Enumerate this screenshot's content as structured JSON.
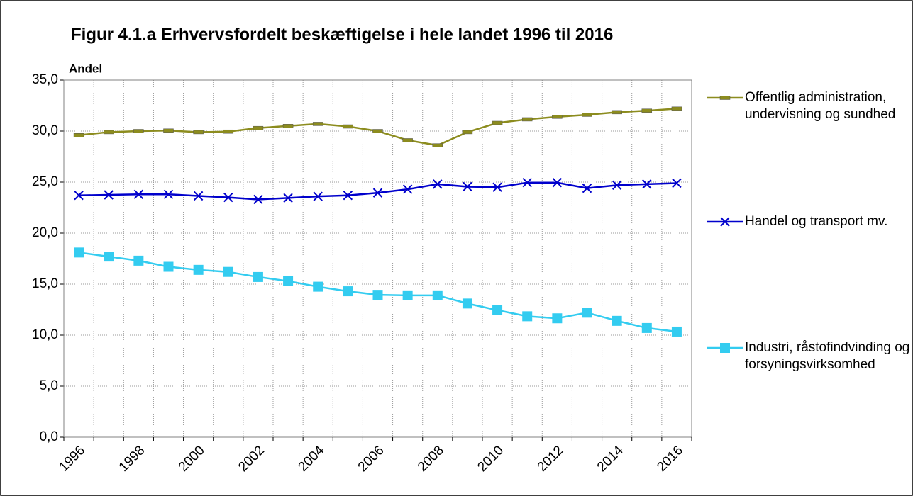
{
  "chart_data": {
    "type": "line",
    "title": "Figur 4.1.a Erhvervsfordelt beskæftigelse i hele landet 1996 til 2016",
    "y_label": "Andel",
    "categories": [
      "1996",
      null,
      "1998",
      null,
      "2000",
      null,
      "2002",
      null,
      "2004",
      null,
      "2006",
      null,
      "2008",
      null,
      "2010",
      null,
      "2012",
      null,
      "2014",
      null,
      "2016"
    ],
    "series": [
      {
        "name": "Offentlig administration, undervisning og sundhed",
        "color": "#8c8c1e",
        "marker": "dash",
        "values": [
          29.6,
          29.9,
          30.0,
          30.05,
          29.9,
          29.95,
          30.3,
          30.5,
          30.7,
          30.45,
          30.0,
          29.1,
          28.6,
          29.9,
          30.8,
          31.15,
          31.4,
          31.6,
          31.85,
          32.0,
          32.2
        ]
      },
      {
        "name": "Handel og transport mv.",
        "color": "#0000cc",
        "marker": "x",
        "values": [
          23.7,
          23.75,
          23.8,
          23.8,
          23.65,
          23.5,
          23.3,
          23.45,
          23.6,
          23.7,
          23.95,
          24.3,
          24.8,
          24.55,
          24.5,
          24.95,
          24.95,
          24.4,
          24.7,
          24.8,
          24.9
        ]
      },
      {
        "name": "Industri, råstofindvinding og forsyningsvirksomhed",
        "color": "#33ccf0",
        "marker": "square",
        "values": [
          18.1,
          17.7,
          17.3,
          16.7,
          16.4,
          16.2,
          15.7,
          15.3,
          14.75,
          14.3,
          13.95,
          13.9,
          13.9,
          13.1,
          12.45,
          11.85,
          11.65,
          12.2,
          11.4,
          10.7,
          10.35
        ]
      }
    ],
    "ylim": [
      0,
      35
    ],
    "yticks": [
      {
        "value": 0,
        "label": "0,0"
      },
      {
        "value": 5,
        "label": "5,0"
      },
      {
        "value": 10,
        "label": "10,0"
      },
      {
        "value": 15,
        "label": "15,0"
      },
      {
        "value": 20,
        "label": "20,0"
      },
      {
        "value": 25,
        "label": "25,0"
      },
      {
        "value": 30,
        "label": "30,0"
      },
      {
        "value": 35,
        "label": "35,0"
      }
    ],
    "grid": true,
    "legend": "right"
  }
}
